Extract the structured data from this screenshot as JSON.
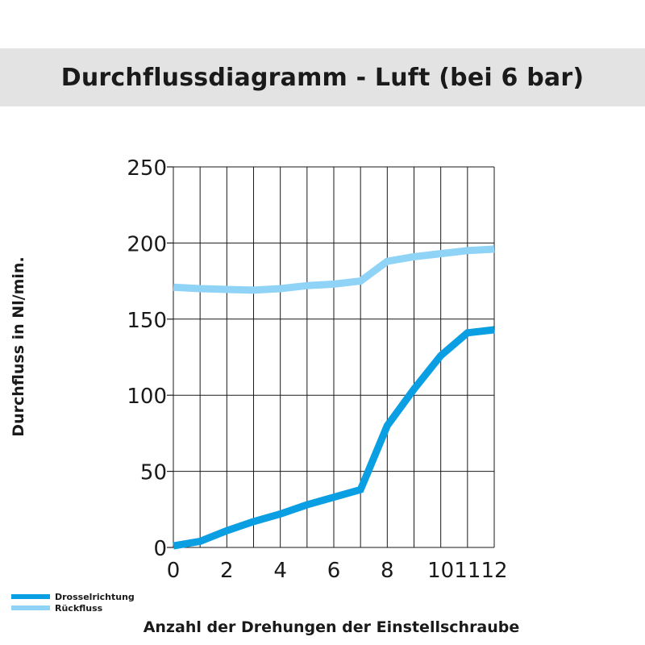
{
  "title": "Durchflussdiagramm - Luft (bei 6 bar)",
  "colors": {
    "title_bg": "#e3e3e3",
    "grid": "#1a1a1a",
    "series_1": "#0a9ee3",
    "series_2": "#8fd3f6"
  },
  "chart_data": {
    "type": "line",
    "title": "Durchflussdiagramm - Luft (bei 6 bar)",
    "xlabel": "Anzahl der Drehungen der Einstellschraube",
    "ylabel": "Durchfluss in Nl/min.",
    "xlim": [
      0,
      12
    ],
    "ylim": [
      0,
      250
    ],
    "x_ticks": [
      0,
      2,
      4,
      6,
      8,
      10,
      11,
      12
    ],
    "x_tick_labels": [
      "0",
      "2",
      "4",
      "6",
      "8",
      "10",
      "11",
      "12"
    ],
    "y_ticks": [
      0,
      50,
      100,
      150,
      200,
      250
    ],
    "y_tick_labels": [
      "0",
      "50",
      "100",
      "150",
      "200",
      "250"
    ],
    "grid": true,
    "legend_position": "bottom-left",
    "series": [
      {
        "name": "Drosselrichtung",
        "color": "#0a9ee3",
        "x": [
          0,
          1,
          2,
          3,
          4,
          5,
          6,
          7,
          8,
          9,
          10,
          11,
          12
        ],
        "y": [
          1,
          4,
          11,
          17,
          22,
          28,
          33,
          38,
          80,
          104,
          126,
          141,
          143
        ]
      },
      {
        "name": "Rückfluss",
        "color": "#8fd3f6",
        "x": [
          0,
          1,
          2,
          3,
          4,
          5,
          6,
          7,
          8,
          9,
          10,
          11,
          12
        ],
        "y": [
          171,
          170,
          169.5,
          169,
          170,
          172,
          173,
          175,
          188,
          191,
          193,
          195,
          196
        ]
      }
    ]
  }
}
